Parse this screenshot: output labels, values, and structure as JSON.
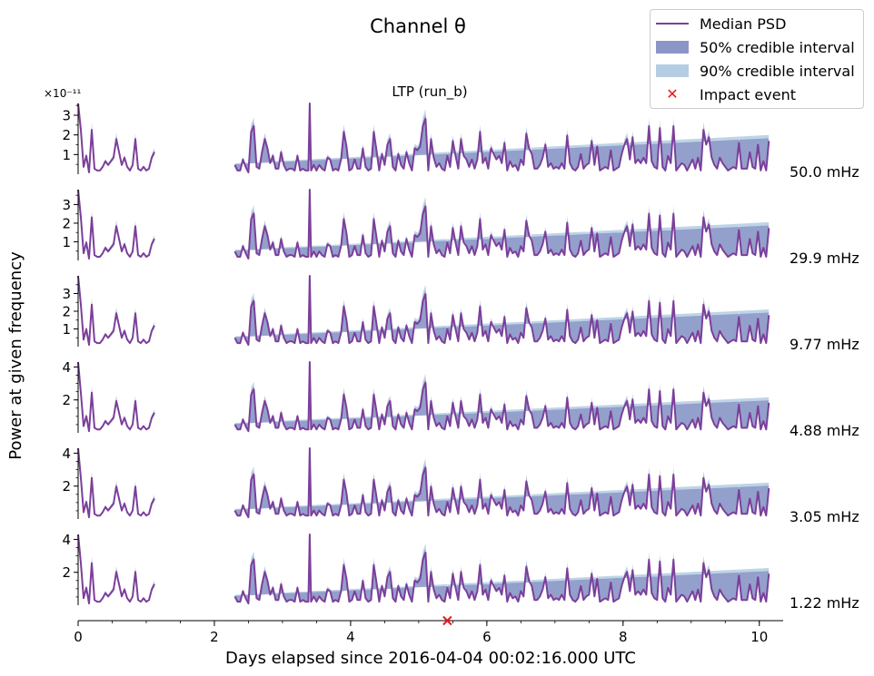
{
  "suptitle": "Channel θ",
  "panel_title": "LTP (run_b)",
  "ylabel": "Power at given frequency",
  "xlabel": "Days elapsed since 2016-04-04 00:02:16.000 UTC",
  "offset_text": "×10⁻¹¹",
  "colors": {
    "median": "#7b3f9b",
    "band50": "#8c96c6",
    "band90": "#b3cde3",
    "impact": "#e41a1c"
  },
  "legend": {
    "median": "Median PSD",
    "band50": "50% credible interval",
    "band90": "90% credible interval",
    "impact": "Impact event"
  },
  "chart_data": {
    "type": "line",
    "xlim": [
      0,
      10.35
    ],
    "x_ticks": [
      "0",
      "2",
      "4",
      "6",
      "8",
      "10"
    ],
    "x_tick_values": [
      0,
      2,
      4,
      6,
      8,
      10
    ],
    "gap_days": [
      1.12,
      2.3
    ],
    "spike_day": 3.4,
    "impact_day": 5.42,
    "series_x": [
      0.0,
      0.04,
      0.08,
      0.12,
      0.16,
      0.2,
      0.24,
      0.28,
      0.32,
      0.36,
      0.4,
      0.44,
      0.48,
      0.52,
      0.56,
      0.6,
      0.64,
      0.68,
      0.72,
      0.76,
      0.8,
      0.84,
      0.88,
      0.92,
      0.96,
      1.0,
      1.04,
      1.08,
      1.12,
      2.3,
      2.34,
      2.38,
      2.42,
      2.46,
      2.5,
      2.54,
      2.58,
      2.62,
      2.66,
      2.7,
      2.74,
      2.78,
      2.82,
      2.86,
      2.9,
      2.94,
      2.98,
      3.02,
      3.06,
      3.1,
      3.14,
      3.18,
      3.22,
      3.26,
      3.3,
      3.34,
      3.38,
      3.4,
      3.42,
      3.46,
      3.5,
      3.54,
      3.58,
      3.62,
      3.66,
      3.7,
      3.74,
      3.78,
      3.82,
      3.86,
      3.9,
      3.94,
      3.98,
      4.02,
      4.06,
      4.1,
      4.14,
      4.18,
      4.22,
      4.26,
      4.3,
      4.34,
      4.38,
      4.42,
      4.46,
      4.5,
      4.54,
      4.58,
      4.62,
      4.66,
      4.7,
      4.74,
      4.78,
      4.82,
      4.86,
      4.9,
      4.94,
      4.98,
      5.02,
      5.06,
      5.1,
      5.14,
      5.18,
      5.22,
      5.26,
      5.3,
      5.34,
      5.38,
      5.42,
      5.46,
      5.5,
      5.54,
      5.58,
      5.62,
      5.66,
      5.7,
      5.74,
      5.78,
      5.82,
      5.86,
      5.9,
      5.94,
      5.98,
      6.02,
      6.06,
      6.1,
      6.14,
      6.18,
      6.22,
      6.26,
      6.3,
      6.34,
      6.38,
      6.42,
      6.46,
      6.5,
      6.54,
      6.58,
      6.62,
      6.66,
      6.7,
      6.74,
      6.78,
      6.82,
      6.86,
      6.9,
      6.94,
      6.98,
      7.02,
      7.06,
      7.1,
      7.14,
      7.18,
      7.22,
      7.26,
      7.3,
      7.34,
      7.38,
      7.42,
      7.46,
      7.5,
      7.54,
      7.58,
      7.62,
      7.66,
      7.7,
      7.74,
      7.78,
      7.82,
      7.86,
      7.9,
      7.94,
      7.98,
      8.02,
      8.06,
      8.1,
      8.14,
      8.18,
      8.22,
      8.26,
      8.3,
      8.34,
      8.38,
      8.42,
      8.46,
      8.5,
      8.54,
      8.58,
      8.62,
      8.66,
      8.7,
      8.74,
      8.78,
      8.82,
      8.86,
      8.9,
      8.94,
      8.98,
      9.02,
      9.06,
      9.1,
      9.14,
      9.18,
      9.22,
      9.26,
      9.3,
      9.34,
      9.38,
      9.42,
      9.46,
      9.5,
      9.54,
      9.58,
      9.62,
      9.66,
      9.7,
      9.74,
      9.78,
      9.82,
      9.86,
      9.9,
      9.94,
      9.98,
      10.02,
      10.06,
      10.1,
      10.14,
      10.18,
      10.22,
      10.26,
      10.3
    ],
    "base_profile": [
      3.8,
      2.4,
      0.4,
      1.0,
      0.1,
      2.4,
      0.3,
      0.2,
      0.2,
      0.4,
      0.7,
      0.5,
      0.7,
      0.9,
      1.9,
      1.2,
      0.5,
      0.9,
      0.4,
      0.2,
      0.5,
      1.9,
      0.3,
      0.2,
      0.4,
      0.2,
      0.3,
      0.9,
      1.2,
      0.5,
      0.2,
      0.2,
      0.8,
      0.4,
      0.1,
      2.3,
      2.6,
      0.4,
      0.3,
      1.2,
      1.9,
      1.4,
      0.6,
      1.0,
      0.3,
      0.3,
      1.2,
      0.5,
      0.2,
      0.3,
      0.3,
      0.2,
      1.0,
      0.2,
      0.3,
      0.2,
      0.2,
      4.0,
      0.2,
      0.5,
      0.2,
      0.5,
      0.3,
      0.2,
      0.9,
      0.8,
      0.2,
      0.3,
      0.2,
      0.8,
      2.3,
      1.5,
      0.2,
      0.3,
      0.8,
      0.3,
      0.3,
      1.4,
      0.4,
      0.2,
      0.3,
      2.3,
      1.3,
      0.2,
      1.1,
      0.5,
      1.6,
      1.9,
      0.4,
      0.2,
      1.1,
      0.5,
      0.3,
      1.2,
      0.6,
      0.2,
      1.4,
      1.3,
      1.5,
      2.6,
      3.0,
      0.2,
      1.9,
      0.9,
      0.4,
      0.6,
      0.3,
      0.2,
      1.0,
      0.4,
      1.8,
      1.0,
      0.3,
      1.9,
      1.0,
      0.8,
      0.4,
      0.8,
      0.3,
      0.8,
      2.3,
      0.6,
      0.9,
      0.3,
      1.4,
      1.1,
      0.8,
      1.0,
      0.6,
      1.7,
      0.2,
      0.7,
      0.4,
      0.5,
      0.2,
      0.8,
      0.5,
      2.2,
      1.4,
      1.1,
      0.3,
      0.3,
      0.5,
      0.9,
      1.6,
      0.4,
      0.6,
      0.3,
      0.4,
      0.3,
      0.6,
      0.3,
      2.1,
      0.6,
      0.3,
      0.2,
      0.4,
      1.1,
      0.3,
      0.5,
      0.6,
      1.8,
      0.5,
      1.5,
      0.2,
      0.3,
      0.4,
      0.3,
      1.3,
      0.2,
      0.3,
      0.4,
      1.1,
      1.6,
      1.9,
      0.8,
      2.0,
      0.6,
      0.8,
      0.6,
      0.9,
      0.6,
      2.6,
      0.7,
      0.4,
      0.3,
      2.5,
      0.4,
      0.2,
      1.0,
      0.6,
      2.6,
      0.2,
      0.4,
      0.6,
      0.5,
      0.2,
      0.5,
      0.8,
      0.3,
      0.9,
      0.2,
      2.4,
      1.6,
      2.0,
      0.9,
      0.5,
      0.3,
      0.9,
      0.6,
      0.4,
      0.2,
      0.3,
      0.4,
      0.3,
      1.7,
      0.3,
      0.3,
      0.3,
      1.2,
      0.4,
      0.3,
      1.6,
      0.2,
      0.7,
      0.2,
      1.8
    ],
    "panels": [
      {
        "label": "50.0 mHz",
        "ylim": [
          0,
          3.6
        ],
        "yticks": [
          1,
          2,
          3
        ],
        "ytick_labels": [
          "1",
          "2",
          "3"
        ]
      },
      {
        "label": "29.9 mHz",
        "ylim": [
          0,
          3.8
        ],
        "yticks": [
          1,
          2,
          3
        ],
        "ytick_labels": [
          "1",
          "2",
          "3"
        ]
      },
      {
        "label": "9.77 mHz",
        "ylim": [
          0,
          4.0
        ],
        "yticks": [
          1,
          2,
          3
        ],
        "ytick_labels": [
          "1",
          "2",
          "3"
        ]
      },
      {
        "label": "4.88 mHz",
        "ylim": [
          0,
          4.3
        ],
        "yticks": [
          2,
          4
        ],
        "ytick_labels": [
          "2",
          "4"
        ]
      },
      {
        "label": "3.05 mHz",
        "ylim": [
          0,
          4.3
        ],
        "yticks": [
          2,
          4
        ],
        "ytick_labels": [
          "2",
          "4"
        ]
      },
      {
        "label": "1.22 mHz",
        "ylim": [
          0,
          4.3
        ],
        "yticks": [
          2,
          4
        ],
        "ytick_labels": [
          "2",
          "4"
        ]
      }
    ]
  }
}
